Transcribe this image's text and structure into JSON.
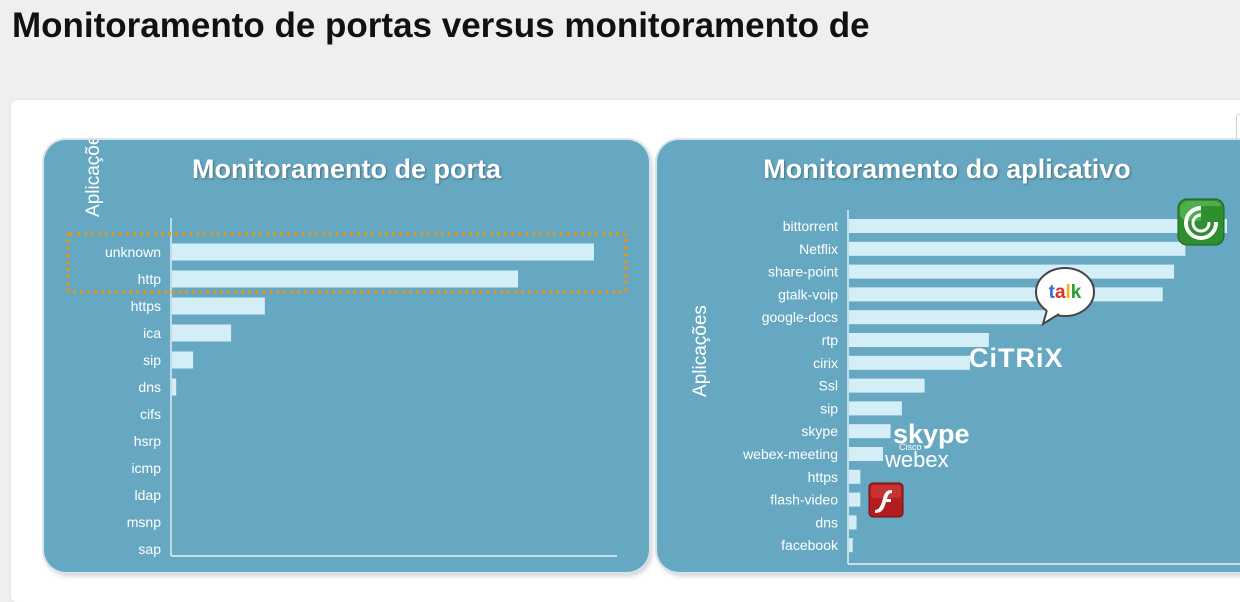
{
  "page": {
    "title": "Monitoramento de portas versus monitoramento de"
  },
  "colors": {
    "panel": "#66a8c1",
    "bar": "#d4eef8",
    "highlight": "#d79a27"
  },
  "chart_data": [
    {
      "type": "bar",
      "orientation": "horizontal",
      "title": "Monitoramento de porta",
      "ylabel": "Aplicações",
      "categories": [
        "unknown",
        "http",
        "https",
        "ica",
        "sip",
        "dns",
        "cifs",
        "hsrp",
        "icmp",
        "ldap",
        "msnp",
        "sap"
      ],
      "values": [
        100,
        82,
        22,
        14,
        5,
        1,
        0,
        0,
        0,
        0,
        0,
        0
      ],
      "xlim": [
        0,
        100
      ],
      "highlighted": [
        "unknown",
        "http"
      ]
    },
    {
      "type": "bar",
      "orientation": "horizontal",
      "title": "Monitoramento do aplicativo",
      "ylabel": "Aplicações",
      "categories": [
        "bittorrent",
        "Netflix",
        "share-point",
        "gtalk-voip",
        "google-docs",
        "rtp",
        "cirix",
        "Ssl",
        "sip",
        "skype",
        "webex-meeting",
        "https",
        "flash-video",
        "dns",
        "facebook"
      ],
      "values": [
        100,
        89,
        86,
        83,
        52,
        37,
        32,
        20,
        14,
        11,
        9,
        3,
        3,
        2,
        1
      ],
      "xlim": [
        0,
        100
      ]
    }
  ],
  "logos": {
    "talk": "talk",
    "citrix": "CiTRiX",
    "skype": "skype",
    "webex_small": "Cisco",
    "webex": "webex",
    "flash": "f"
  }
}
